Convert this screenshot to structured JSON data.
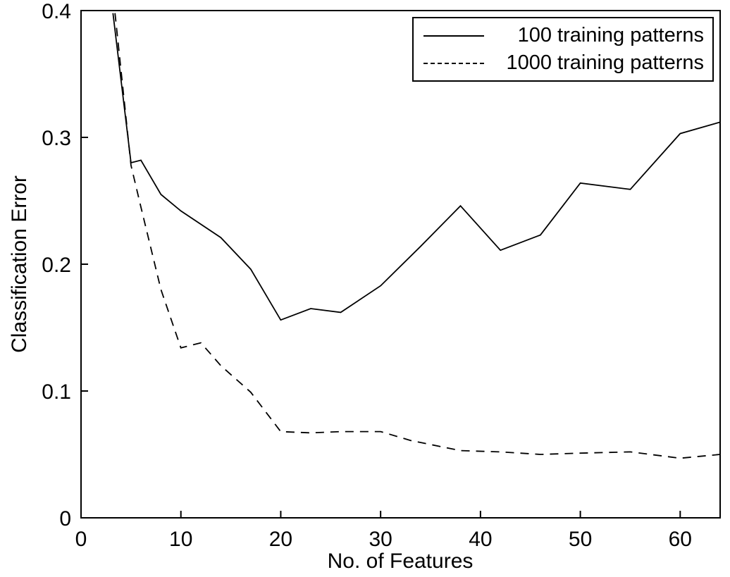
{
  "chart_data": {
    "type": "line",
    "title": "",
    "xlabel": "No. of Features",
    "ylabel": "Classification Error",
    "xlim": [
      0,
      64
    ],
    "ylim": [
      0,
      0.4
    ],
    "xticks": [
      0,
      10,
      20,
      30,
      40,
      50,
      60
    ],
    "xtick_labels": [
      "0",
      "10",
      "20",
      "30",
      "40",
      "50",
      "60"
    ],
    "yticks": [
      0,
      0.1,
      0.2,
      0.3,
      0.4
    ],
    "ytick_labels": [
      "0",
      "0.1",
      "0.2",
      "0.3",
      "0.4"
    ],
    "grid": false,
    "legend_position": "top-right",
    "line_color": "#000000",
    "series": [
      {
        "name": "100 training patterns",
        "style": "solid",
        "color": "#000000",
        "points": [
          [
            3.2,
            0.398
          ],
          [
            5,
            0.28
          ],
          [
            6,
            0.282
          ],
          [
            8,
            0.255
          ],
          [
            10,
            0.242
          ],
          [
            14,
            0.221
          ],
          [
            17,
            0.196
          ],
          [
            20,
            0.156
          ],
          [
            23,
            0.165
          ],
          [
            26,
            0.162
          ],
          [
            30,
            0.183
          ],
          [
            34,
            0.214
          ],
          [
            38,
            0.246
          ],
          [
            42,
            0.211
          ],
          [
            46,
            0.223
          ],
          [
            50,
            0.264
          ],
          [
            55,
            0.259
          ],
          [
            60,
            0.303
          ],
          [
            64,
            0.312
          ]
        ]
      },
      {
        "name": "1000 training patterns",
        "style": "dashed",
        "color": "#000000",
        "points": [
          [
            3.4,
            0.398
          ],
          [
            5,
            0.278
          ],
          [
            6,
            0.245
          ],
          [
            8,
            0.18
          ],
          [
            10,
            0.134
          ],
          [
            12,
            0.138
          ],
          [
            14,
            0.12
          ],
          [
            17,
            0.099
          ],
          [
            20,
            0.068
          ],
          [
            23,
            0.067
          ],
          [
            26,
            0.068
          ],
          [
            30,
            0.068
          ],
          [
            33,
            0.061
          ],
          [
            38,
            0.053
          ],
          [
            42,
            0.052
          ],
          [
            46,
            0.05
          ],
          [
            50,
            0.051
          ],
          [
            55,
            0.052
          ],
          [
            60,
            0.047
          ],
          [
            64,
            0.05
          ]
        ]
      }
    ]
  }
}
